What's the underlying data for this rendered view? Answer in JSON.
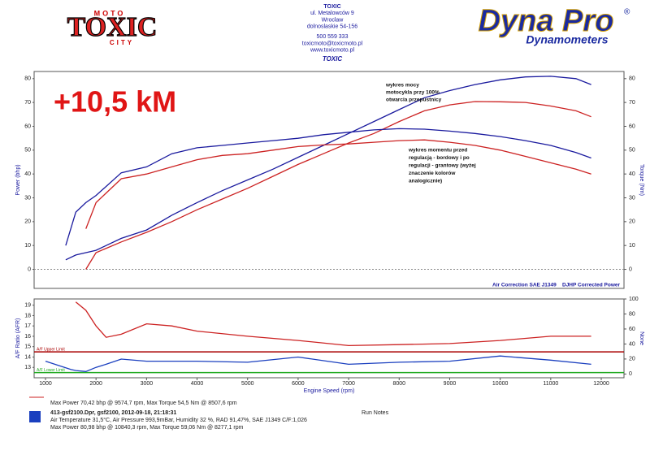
{
  "header": {
    "logo_left": {
      "top": "MOTO",
      "main": "TOXIC",
      "bottom": "CITY"
    },
    "address": [
      "TOXIC",
      "ul. Metalowców 9",
      "Wroclaw",
      "dolnoslaskie 54-156",
      "500 559 333",
      "toxicmoto@toxicmoto.pl",
      "www.toxicmoto.pl"
    ],
    "subtitle": "TOXIC",
    "logo_right": {
      "main": "Dyna Pro",
      "mark": "®",
      "sub": "Dynamometers"
    }
  },
  "chart_data": [
    {
      "type": "line",
      "annotation": "+10,5 kM",
      "notes": [
        "wykres mocy",
        "motocykla przy 100%",
        "otwarcia przepustnicy",
        "wykres momentu przed",
        "regulacją - bordowy i po",
        "regulacji - grantowy (wyżej",
        "znaczenie kolorów",
        "analogicznie)"
      ],
      "corner_notes": [
        "Air Correction SAE J1349",
        "DJHP Corrected Power"
      ],
      "y_label": "Power (bhp)",
      "y2_label": "Torque (Nm)",
      "x": [
        1400,
        1600,
        1800,
        2000,
        2500,
        3000,
        3500,
        4000,
        4500,
        5000,
        5500,
        6000,
        6500,
        7000,
        7500,
        8000,
        8500,
        9000,
        9500,
        10000,
        10500,
        11000,
        11500,
        11800
      ],
      "xlim": [
        775,
        12450
      ],
      "ylim": [
        -8,
        83
      ],
      "yticks": [
        0,
        10,
        20,
        30,
        40,
        50,
        60,
        70,
        80
      ],
      "y2lim": [
        -8,
        83
      ],
      "y2ticks": [
        0,
        10,
        20,
        30,
        40,
        50,
        60,
        70,
        80
      ],
      "series": [
        {
          "color": "#1a1a9e",
          "values": [
            4,
            6,
            7,
            8,
            13,
            16.5,
            22.7,
            28,
            33,
            37.5,
            42,
            47,
            52,
            57,
            62,
            67,
            72,
            75,
            77.5,
            79.5,
            80.7,
            81,
            80,
            77.5
          ]
        },
        {
          "color": "#cc2222",
          "values": [
            null,
            null,
            0,
            7,
            11.5,
            15.5,
            20,
            25,
            29.5,
            34,
            39,
            44,
            48.5,
            53,
            57,
            62,
            66.5,
            69,
            70.4,
            70.3,
            70,
            68.5,
            66.5,
            64
          ]
        },
        {
          "color": "#1a1a9e",
          "axis": "y2",
          "values": [
            10,
            24,
            28,
            31,
            40.5,
            43,
            48.5,
            51,
            52,
            53,
            54,
            55,
            56.5,
            57.5,
            58.5,
            59,
            58.8,
            58,
            57,
            55.7,
            54,
            52,
            49,
            46.7
          ]
        },
        {
          "color": "#cc2222",
          "axis": "y2",
          "values": [
            null,
            null,
            17,
            28,
            38,
            40,
            43,
            46,
            47.8,
            48.5,
            50,
            51.5,
            52.2,
            52.6,
            53.3,
            54,
            54.3,
            53.3,
            52,
            50,
            47.4,
            44.7,
            42,
            40
          ]
        }
      ]
    },
    {
      "type": "line",
      "y_label": "A/F Ratio (AFR)",
      "y2_label": "None",
      "x_label": "Engine Speed (rpm)",
      "x": [
        1000,
        1500,
        1600,
        1800,
        2000,
        2200,
        2500,
        3000,
        3500,
        4000,
        5000,
        6000,
        7000,
        8000,
        9000,
        10000,
        11000,
        11800
      ],
      "xlim": [
        775,
        12450
      ],
      "xticks": [
        1000,
        2000,
        3000,
        4000,
        5000,
        6000,
        7000,
        8000,
        9000,
        10000,
        11000,
        12000
      ],
      "ylim": [
        12,
        19.6
      ],
      "yticks": [
        13,
        14,
        15,
        16,
        17,
        18,
        19
      ],
      "y2lim": [
        -5,
        100
      ],
      "y2ticks": [
        0,
        20,
        40,
        60,
        80,
        100
      ],
      "limits": [
        {
          "label": "A/F Upper Limit",
          "value": 14.5,
          "color": "#aa0000"
        },
        {
          "label": "A/F Lower Limit",
          "value": 12.5,
          "color": "#22aa22"
        }
      ],
      "series": [
        {
          "color": "#cc2222",
          "values": [
            null,
            null,
            19.3,
            18.5,
            17,
            15.9,
            16.2,
            17.2,
            17,
            16.5,
            16,
            15.6,
            15.1,
            15.2,
            15.3,
            15.6,
            16,
            16
          ]
        },
        {
          "color": "#1a3fbf",
          "values": [
            13.6,
            12.8,
            12.7,
            12.6,
            13,
            13.3,
            13.8,
            13.6,
            13.6,
            13.6,
            13.5,
            14,
            13.3,
            13.5,
            13.6,
            14.1,
            13.7,
            13.3
          ]
        }
      ]
    }
  ],
  "footer": {
    "run1": "Max Power 70,42 bhp @ 9574,7 rpm, Max Torque 54,5 Nm @ 8507,6 rpm",
    "run2_title": "413-gsf2100.Dpr,   gsf2100,   2012-09-18,   21:18:31",
    "run2_conditions": "Air Temperature 31,5°C, Air Pressure 993,9mBar, Humidity 32 %, RAD 91,47%,   SAE J1349  C/F:1,026",
    "run2_max": "Max Power 80,98 bhp @ 10840,3 rpm, Max Torque 59,06 Nm @ 8277,1 rpm",
    "notes": "Run Notes"
  }
}
